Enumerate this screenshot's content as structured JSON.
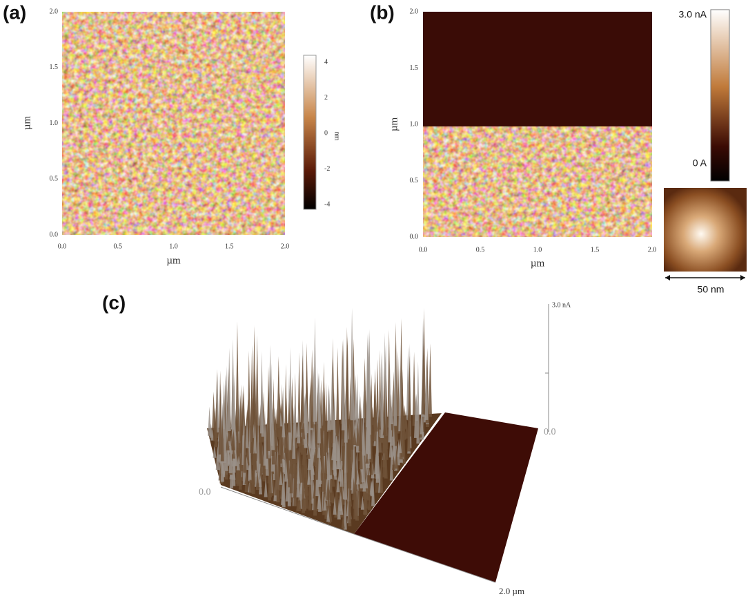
{
  "panels": [
    {
      "label": "(a)",
      "x_label": "µm",
      "y_label": "µm",
      "x_ticks": [
        "0.0",
        "0.5",
        "1.0",
        "1.5",
        "2.0"
      ],
      "y_ticks": [
        "0.0",
        "0.5",
        "1.0",
        "1.5",
        "2.0"
      ],
      "colorbar": {
        "ticks": [
          "4",
          "2",
          "0",
          "-2",
          "-4"
        ],
        "unit": "nm"
      }
    },
    {
      "label": "(b)",
      "x_label": "µm",
      "y_label": "µm",
      "x_ticks": [
        "0.0",
        "0.5",
        "1.0",
        "1.5",
        "2.0"
      ],
      "y_ticks": [
        "0.0",
        "0.5",
        "1.0",
        "1.5",
        "2.0"
      ],
      "colorbar": {
        "top": "3.0 nA",
        "bottom": "0 A"
      },
      "inset": {
        "scale": "50 nm"
      }
    },
    {
      "label": "(c)",
      "z_top": "3.0 nA",
      "z_zero": "0.0",
      "origin": "0.0",
      "x_end": "2.0 µm"
    }
  ]
}
